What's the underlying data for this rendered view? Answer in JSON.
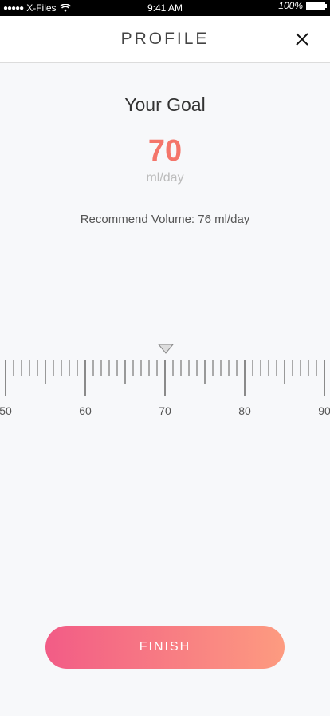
{
  "status_bar": {
    "carrier": "X-Files",
    "time": "9:41 AM",
    "battery": "100%"
  },
  "header": {
    "title": "PROFILE",
    "close_icon": "close-icon"
  },
  "goal": {
    "title": "Your Goal",
    "value": "70",
    "unit": "ml/day",
    "recommend": "Recommend Volume: 76 ml/day"
  },
  "ruler": {
    "min": 50,
    "max": 90,
    "selected": 70,
    "labels": [
      "50",
      "60",
      "70",
      "80",
      "90"
    ]
  },
  "footer": {
    "finish_label": "FINISH"
  },
  "colors": {
    "accent": "#f4756a",
    "button_gradient_start": "#f25c86",
    "button_gradient_end": "#fd9b80"
  }
}
